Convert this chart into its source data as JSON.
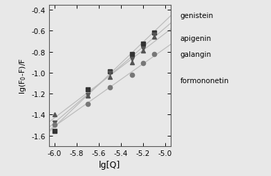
{
  "title": "",
  "xlabel": "lg[Q]",
  "ylabel": "lg(F$_0$-F)/F",
  "xlim": [
    -6.05,
    -4.95
  ],
  "ylim": [
    -1.7,
    -0.35
  ],
  "xticks": [
    -6.0,
    -5.8,
    -5.6,
    -5.4,
    -5.2,
    -5.0
  ],
  "yticks": [
    -1.6,
    -1.4,
    -1.2,
    -1.0,
    -0.8,
    -0.6,
    -0.4
  ],
  "series": [
    {
      "name": "genistein",
      "marker": "s",
      "color": "#333333",
      "x": [
        -6.0,
        -5.7,
        -5.5,
        -5.3,
        -5.2,
        -5.1
      ],
      "y": [
        -1.56,
        -1.16,
        -0.99,
        -0.82,
        -0.72,
        -0.62
      ]
    },
    {
      "name": "apigenin",
      "marker": "v",
      "color": "#555555",
      "x": [
        -6.0,
        -5.7,
        -5.5,
        -5.3,
        -5.2,
        -5.1
      ],
      "y": [
        -1.48,
        -1.21,
        -1.0,
        -0.87,
        -0.77,
        -0.64
      ]
    },
    {
      "name": "galangin",
      "marker": "^",
      "color": "#555555",
      "x": [
        -6.0,
        -5.7,
        -5.5,
        -5.3,
        -5.2,
        -5.1
      ],
      "y": [
        -1.4,
        -1.22,
        -1.04,
        -0.9,
        -0.79,
        -0.66
      ]
    },
    {
      "name": "formononetin",
      "marker": "o",
      "color": "#777777",
      "x": [
        -6.0,
        -5.7,
        -5.5,
        -5.3,
        -5.2,
        -5.1
      ],
      "y": [
        -1.5,
        -1.3,
        -1.14,
        -1.02,
        -0.91,
        -0.82
      ]
    }
  ],
  "line_color": "#bbbbbb",
  "background_color": "#f0f0f0",
  "legend_labels": [
    "genistein",
    "apigenin",
    "galangin",
    "",
    "formononetin"
  ]
}
